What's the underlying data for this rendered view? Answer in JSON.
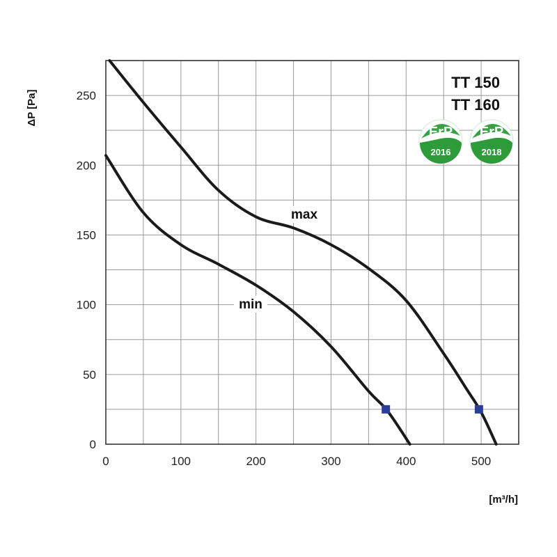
{
  "chart_data": {
    "type": "line",
    "xlabel": "[m³/h]",
    "ylabel": "ΔP [Pa]",
    "xlim": [
      0,
      550
    ],
    "ylim": [
      0,
      275
    ],
    "x_ticks": [
      "0",
      "100",
      "200",
      "300",
      "400",
      "500"
    ],
    "y_ticks": [
      "0",
      "50",
      "100",
      "150",
      "200",
      "250"
    ],
    "grid": true,
    "models": [
      "TT 150",
      "TT 160"
    ],
    "badges": [
      {
        "text": "ErP",
        "year": "2016"
      },
      {
        "text": "ErP",
        "year": "2018"
      }
    ],
    "series": [
      {
        "name": "max",
        "x": [
          5,
          50,
          100,
          150,
          200,
          250,
          300,
          350,
          400,
          450,
          480,
          500,
          520
        ],
        "y": [
          275,
          245,
          213,
          182,
          163,
          155,
          143,
          126,
          103,
          65,
          40,
          23,
          0
        ],
        "marker": {
          "x": 497,
          "y": 25
        }
      },
      {
        "name": "min",
        "x": [
          0,
          50,
          100,
          150,
          200,
          250,
          300,
          350,
          375,
          405
        ],
        "y": [
          207,
          166,
          143,
          129,
          114,
          95,
          70,
          38,
          24,
          0
        ],
        "marker": {
          "x": 373,
          "y": 25
        }
      }
    ],
    "colors": {
      "curve": "#1a1a1a",
      "marker": "#2b3f99",
      "grid": "#9a9a9a",
      "badge": "#2e9b3a"
    }
  }
}
